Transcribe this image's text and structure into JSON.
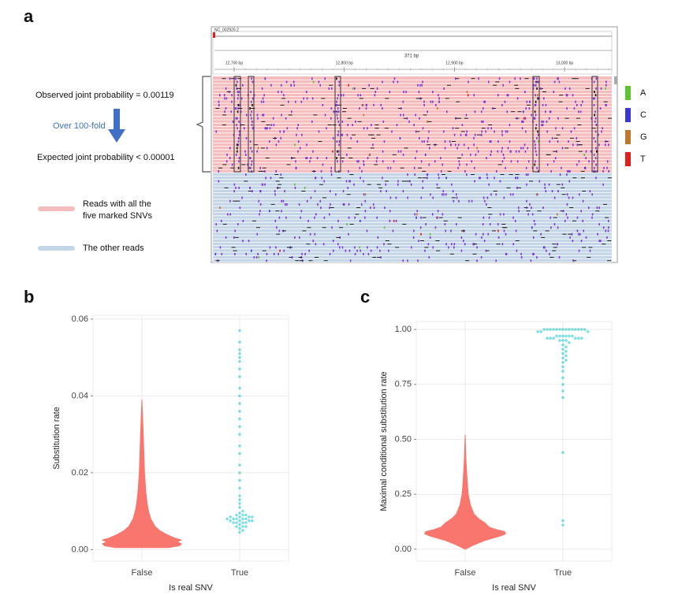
{
  "panel_a": {
    "label": "a",
    "reference": "NC_002929.2",
    "span": "371 bp",
    "ruler_ticks": [
      "12,700 bp",
      "12,800 bp",
      "12,900 bp",
      "13,000 bp"
    ],
    "observed": "Observed joint probability = 0.00119",
    "fold": "Over 100-fold",
    "expected": "Expected joint probability < 0.00001",
    "legend": [
      {
        "lines": [
          "Reads with all the",
          "five marked SNVs"
        ],
        "color": "#f4bcbc"
      },
      {
        "lines": [
          "The other reads"
        ],
        "color": "#c3d5e6"
      }
    ],
    "bases": [
      {
        "name": "A",
        "color": "#5fc431"
      },
      {
        "name": "C",
        "color": "#3b36d9"
      },
      {
        "name": "G",
        "color": "#c2782c"
      },
      {
        "name": "T",
        "color": "#e0201b"
      }
    ]
  },
  "chart_data": [
    {
      "type": "violin",
      "label": "b",
      "xlabel": "Is real SNV",
      "ylabel": "Substitution rate",
      "categories": [
        "False",
        "True"
      ],
      "ylim": [
        -0.003,
        0.061
      ],
      "yticks": [
        {
          "value": 0,
          "label": "0.00"
        },
        {
          "value": 0.02,
          "label": "0.02"
        },
        {
          "value": 0.04,
          "label": "0.04"
        },
        {
          "value": 0.06,
          "label": "0.06"
        }
      ],
      "grid": true,
      "violin": {
        "color": "#f8766d",
        "y": [
          0.0005,
          0.001,
          0.0015,
          0.002,
          0.0025,
          0.003,
          0.004,
          0.005,
          0.006,
          0.008,
          0.01,
          0.012,
          0.015,
          0.02,
          0.025,
          0.03,
          0.035,
          0.039
        ],
        "width": [
          0.6,
          0.85,
          0.9,
          0.8,
          0.9,
          0.75,
          0.55,
          0.4,
          0.3,
          0.2,
          0.15,
          0.12,
          0.09,
          0.06,
          0.045,
          0.03,
          0.015,
          0
        ]
      },
      "points": {
        "color": "#00bfc4",
        "values": [
          0.0045,
          0.005,
          0.0055,
          0.006,
          0.006,
          0.006,
          0.0065,
          0.007,
          0.007,
          0.007,
          0.007,
          0.0075,
          0.0075,
          0.0075,
          0.0075,
          0.008,
          0.008,
          0.008,
          0.008,
          0.008,
          0.0085,
          0.0085,
          0.0085,
          0.0085,
          0.009,
          0.009,
          0.009,
          0.0095,
          0.01,
          0.011,
          0.012,
          0.013,
          0.014,
          0.016,
          0.018,
          0.02,
          0.022,
          0.025,
          0.027,
          0.03,
          0.032,
          0.034,
          0.036,
          0.038,
          0.04,
          0.042,
          0.045,
          0.047,
          0.049,
          0.05,
          0.051,
          0.052,
          0.054,
          0.057
        ]
      }
    },
    {
      "type": "violin",
      "label": "c",
      "xlabel": "Is real SNV",
      "ylabel": "Maximal conditional substitution rate",
      "categories": [
        "False",
        "True"
      ],
      "ylim": [
        -0.054,
        1.036
      ],
      "yticks": [
        {
          "value": 0,
          "label": "0.00"
        },
        {
          "value": 0.25,
          "label": "0.25"
        },
        {
          "value": 0.5,
          "label": "0.50"
        },
        {
          "value": 0.75,
          "label": "0.75"
        },
        {
          "value": 1,
          "label": "1.00"
        }
      ],
      "grid": true,
      "violin": {
        "color": "#f8766d",
        "y": [
          0.0,
          0.02,
          0.04,
          0.06,
          0.07,
          0.08,
          0.09,
          0.1,
          0.12,
          0.14,
          0.16,
          0.2,
          0.25,
          0.3,
          0.4,
          0.52
        ],
        "width": [
          0,
          0.2,
          0.45,
          0.8,
          0.92,
          0.9,
          0.7,
          0.55,
          0.45,
          0.3,
          0.2,
          0.12,
          0.07,
          0.05,
          0.02,
          0
        ]
      },
      "points": {
        "color": "#00bfc4",
        "values": [
          1,
          1,
          1,
          1,
          1,
          1,
          1,
          1,
          1,
          1,
          1,
          1,
          1,
          1,
          0.99,
          0.99,
          0.99,
          0.97,
          0.97,
          0.97,
          0.97,
          0.97,
          0.97,
          0.96,
          0.96,
          0.96,
          0.96,
          0.96,
          0.96,
          0.95,
          0.95,
          0.95,
          0.94,
          0.93,
          0.92,
          0.91,
          0.9,
          0.89,
          0.88,
          0.87,
          0.86,
          0.85,
          0.83,
          0.81,
          0.78,
          0.75,
          0.72,
          0.69,
          0.44,
          0.13,
          0.11
        ]
      }
    }
  ]
}
